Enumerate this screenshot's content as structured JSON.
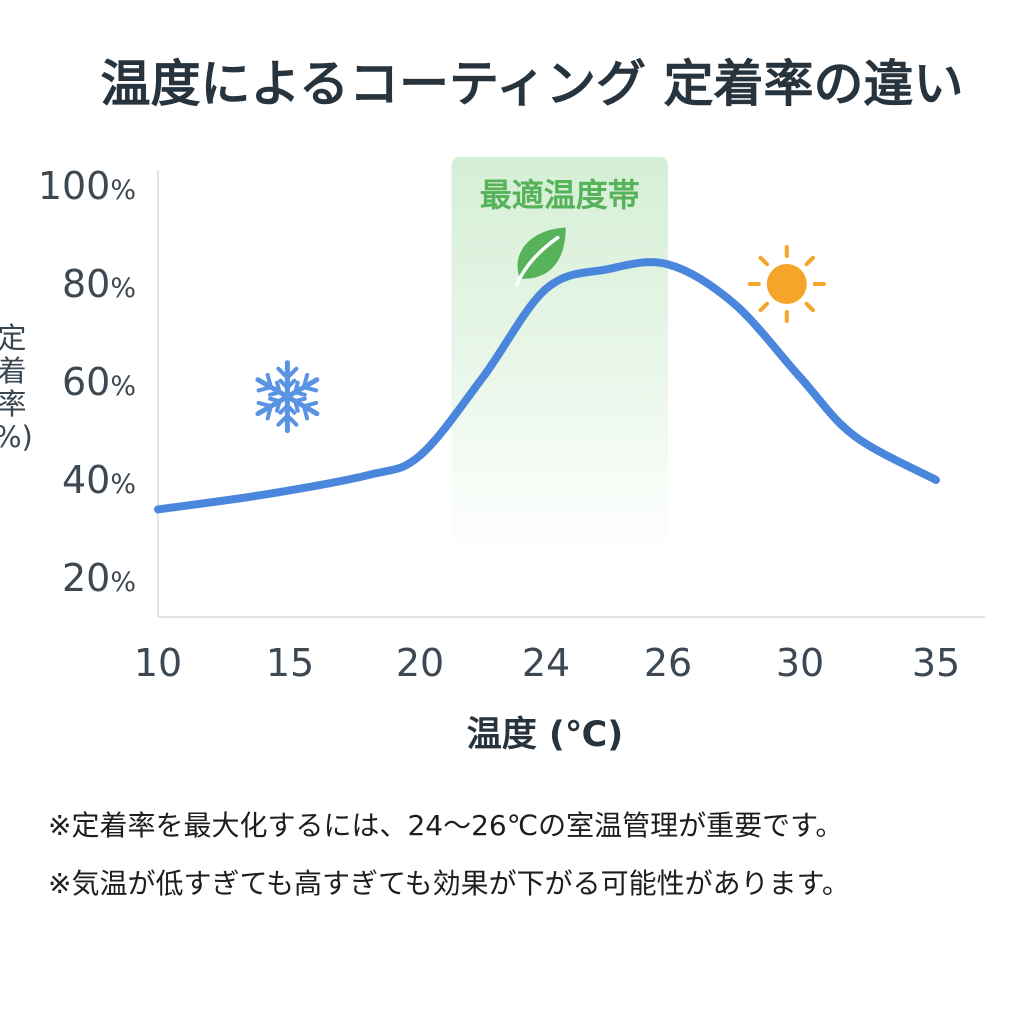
{
  "title": "温度によるコーティング 定着率の違い",
  "chart_data": {
    "type": "line",
    "xlabel": "温度 (℃)",
    "ylabel": [
      "定",
      "着",
      "率",
      "%)"
    ],
    "x_ticks": [
      "10",
      "15",
      "20",
      "24",
      "26",
      "30",
      "35"
    ],
    "y_ticks": [
      "100%",
      "80%",
      "60%",
      "40%",
      "20%"
    ],
    "ylim": [
      20,
      100
    ],
    "grid": false,
    "highlight_band": {
      "label": "最適温度帯",
      "x_range": [
        21,
        26
      ],
      "color": "#56b35a"
    },
    "series": [
      {
        "color": "#4a86dc",
        "x": [
          10,
          14,
          18,
          20,
          22,
          24,
          25,
          26,
          28,
          30,
          32,
          35
        ],
        "y": [
          34,
          37,
          41,
          45,
          61,
          79,
          83,
          84,
          76,
          61,
          49,
          40
        ]
      }
    ],
    "annotations": [
      {
        "icon": "snowflake-icon",
        "x": 14.9,
        "y": 57,
        "color": "#5b93e3"
      },
      {
        "icon": "leaf-icon",
        "x": 23.8,
        "y": 86,
        "color": "#56b35a"
      },
      {
        "icon": "sun-icon",
        "x": 29.6,
        "y": 80,
        "color": "#f5a62a"
      }
    ]
  },
  "notes": [
    "※定着率を最大化するには、24〜26℃の室温管理が重要です。",
    "※気温が低すぎても高すぎても効果が下がる可能性があります。"
  ]
}
